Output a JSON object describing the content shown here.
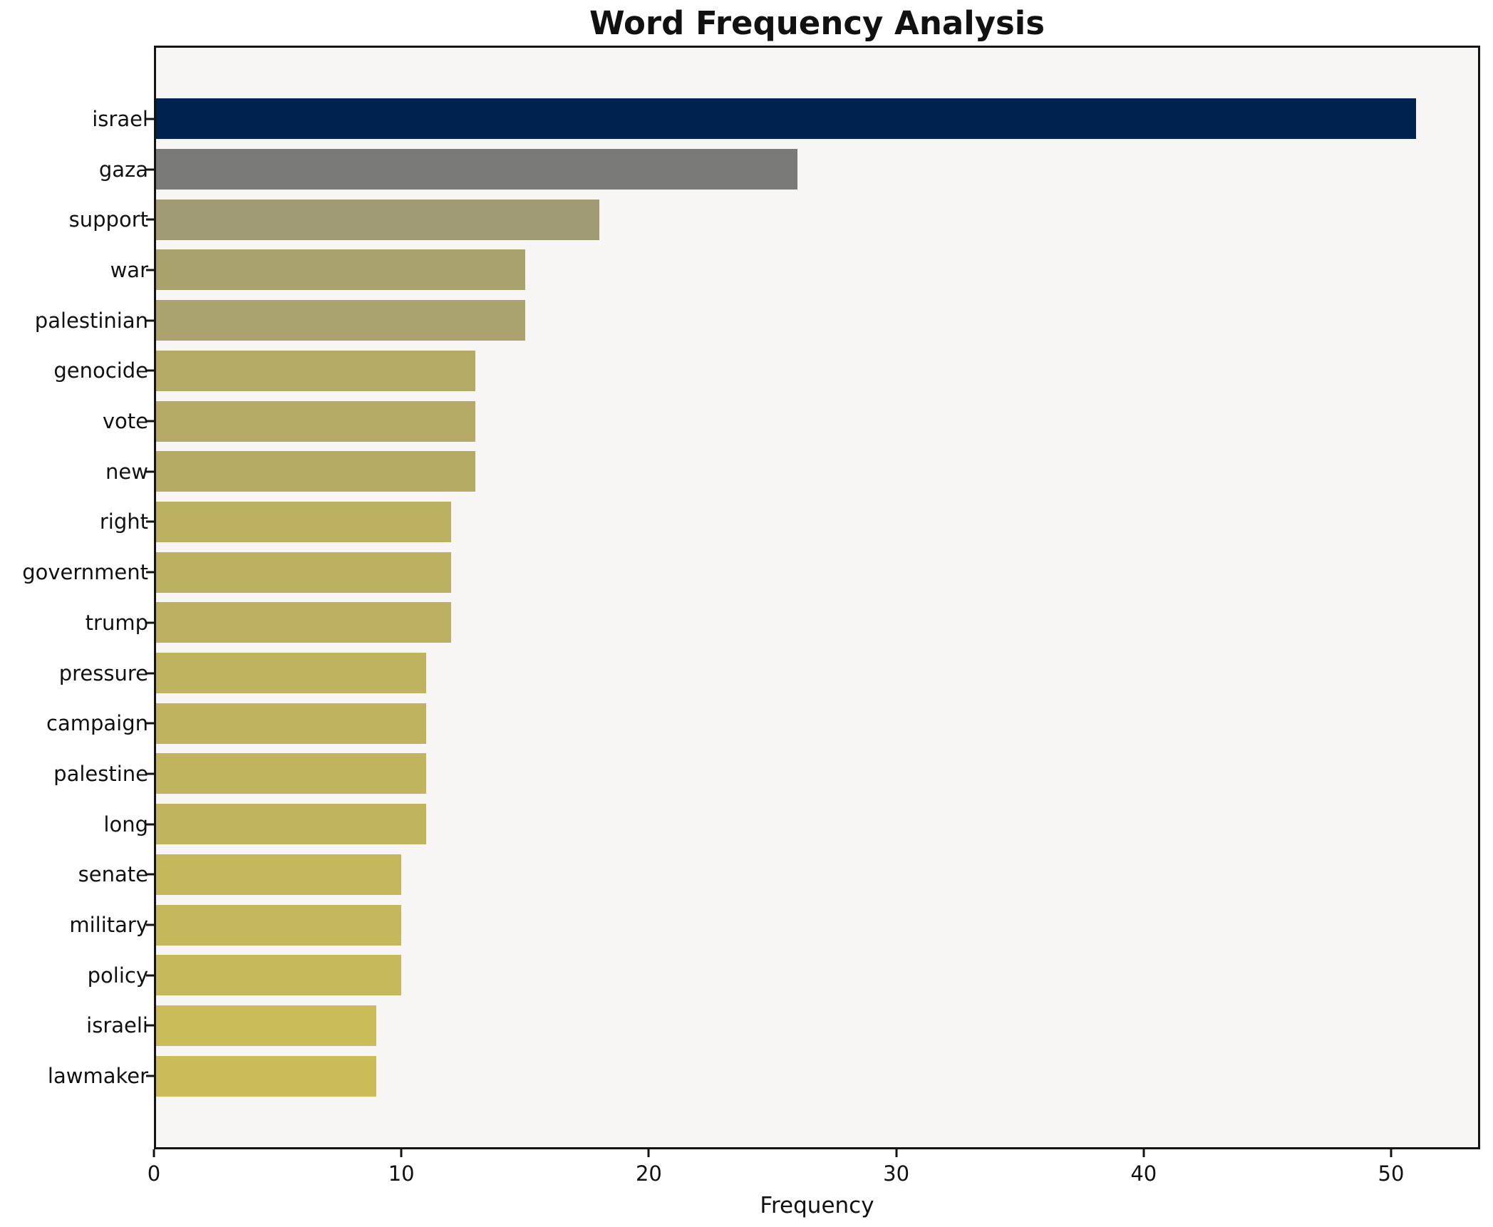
{
  "chart_data": {
    "type": "bar",
    "orientation": "horizontal",
    "title": "Word Frequency Analysis",
    "xlabel": "Frequency",
    "ylabel": "",
    "xlim": [
      0,
      53.6
    ],
    "x_ticks": [
      0,
      10,
      20,
      30,
      40,
      50
    ],
    "grid": false,
    "legend": "none",
    "categories": [
      "israel",
      "gaza",
      "support",
      "war",
      "palestinian",
      "genocide",
      "vote",
      "new",
      "right",
      "government",
      "trump",
      "pressure",
      "campaign",
      "palestine",
      "long",
      "senate",
      "military",
      "policy",
      "israeli",
      "lawmaker"
    ],
    "values": [
      51,
      26,
      18,
      15,
      15,
      13,
      13,
      13,
      12,
      12,
      12,
      11,
      11,
      11,
      11,
      10,
      10,
      10,
      9,
      9
    ],
    "bar_colors": [
      "#00224e",
      "#7a7a78",
      "#a19b75",
      "#aaa26d",
      "#aba36d",
      "#b4aa66",
      "#b4aa66",
      "#b5ab65",
      "#bab060",
      "#bab060",
      "#bbb061",
      "#c0b35f",
      "#c0b35f",
      "#c0b45f",
      "#c1b45e",
      "#c5b85c",
      "#c5b85c",
      "#c6b95b",
      "#cabc59",
      "#cbbc58"
    ],
    "plot_bg": "#f7f6f4",
    "fig_bg": "#ffffff",
    "axis_color": "#141414",
    "text_color": "#111111"
  }
}
